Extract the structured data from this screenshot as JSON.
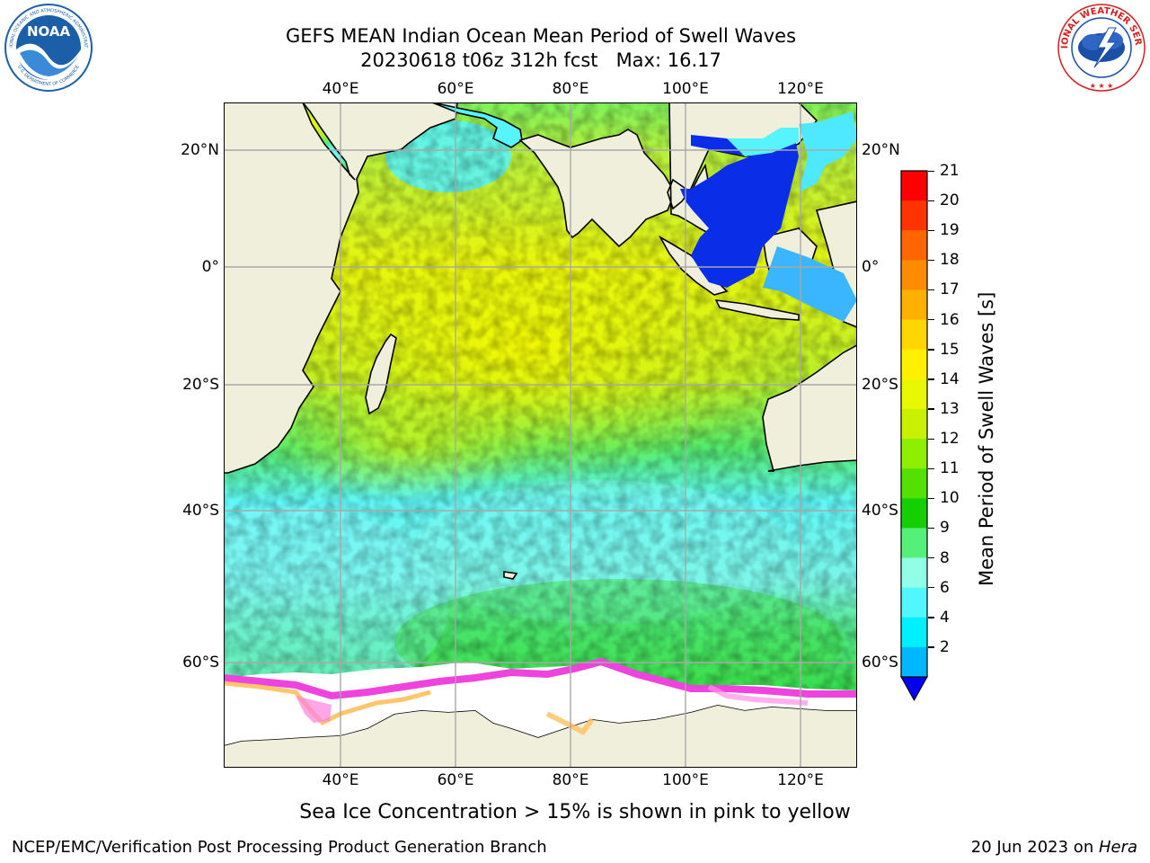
{
  "header": {
    "title_line1": "GEFS MEAN Indian Ocean Mean Period of Swell Waves",
    "title_line2": "20230618 t06z 312h fcst   Max: 16.17"
  },
  "logos": {
    "left": {
      "name": "NOAA",
      "ring_text": "NATIONAL OCEANIC AND ATMOSPHERIC ADMINISTRATION",
      "ring_text_bottom": "U.S. DEPARTMENT OF COMMERCE",
      "color": "#1a5fa8"
    },
    "right": {
      "ring_text": "NATIONAL WEATHER SERVICE",
      "color": "#d42020"
    }
  },
  "map": {
    "projection": "cylindrical",
    "lon_ticks_top": [
      "40°E",
      "60°E",
      "80°E",
      "100°E",
      "120°E"
    ],
    "lon_ticks_bottom": [
      "40°E",
      "60°E",
      "80°E",
      "100°E",
      "120°E"
    ],
    "lat_ticks_left": [
      "20°N",
      "0°",
      "20°S",
      "40°S",
      "60°S"
    ],
    "lat_ticks_right": [
      "20°N",
      "0°",
      "20°S",
      "40°S",
      "60°S"
    ],
    "land_color": "#efefdc",
    "ice_color": "#ffffff",
    "grid_color": "#a8a8a8"
  },
  "colorbar": {
    "label": "Mean Period of Swell Waves [s]",
    "ticks": [
      "21",
      "20",
      "19",
      "18",
      "17",
      "16",
      "15",
      "14",
      "13",
      "12",
      "11",
      "10",
      "9",
      "8",
      "6",
      "4",
      "2"
    ],
    "colors": [
      "#ff0000",
      "#ff3300",
      "#ff6600",
      "#ff8c00",
      "#ffb000",
      "#ffd700",
      "#fff000",
      "#e8f800",
      "#c8f000",
      "#8ef000",
      "#55e100",
      "#14d000",
      "#55f07a",
      "#90ffe6",
      "#50f7ff",
      "#00f0ff",
      "#00b8ff",
      "#0055ff"
    ],
    "extend_color": "#0000ee"
  },
  "footer": {
    "note": "Sea Ice Concentration > 15% is shown in pink to yellow",
    "credit_left": "NCEP/EMC/Verification Post Processing Product Generation Branch",
    "credit_right_date": "20 Jun 2023 on ",
    "credit_right_system": "Hera"
  }
}
